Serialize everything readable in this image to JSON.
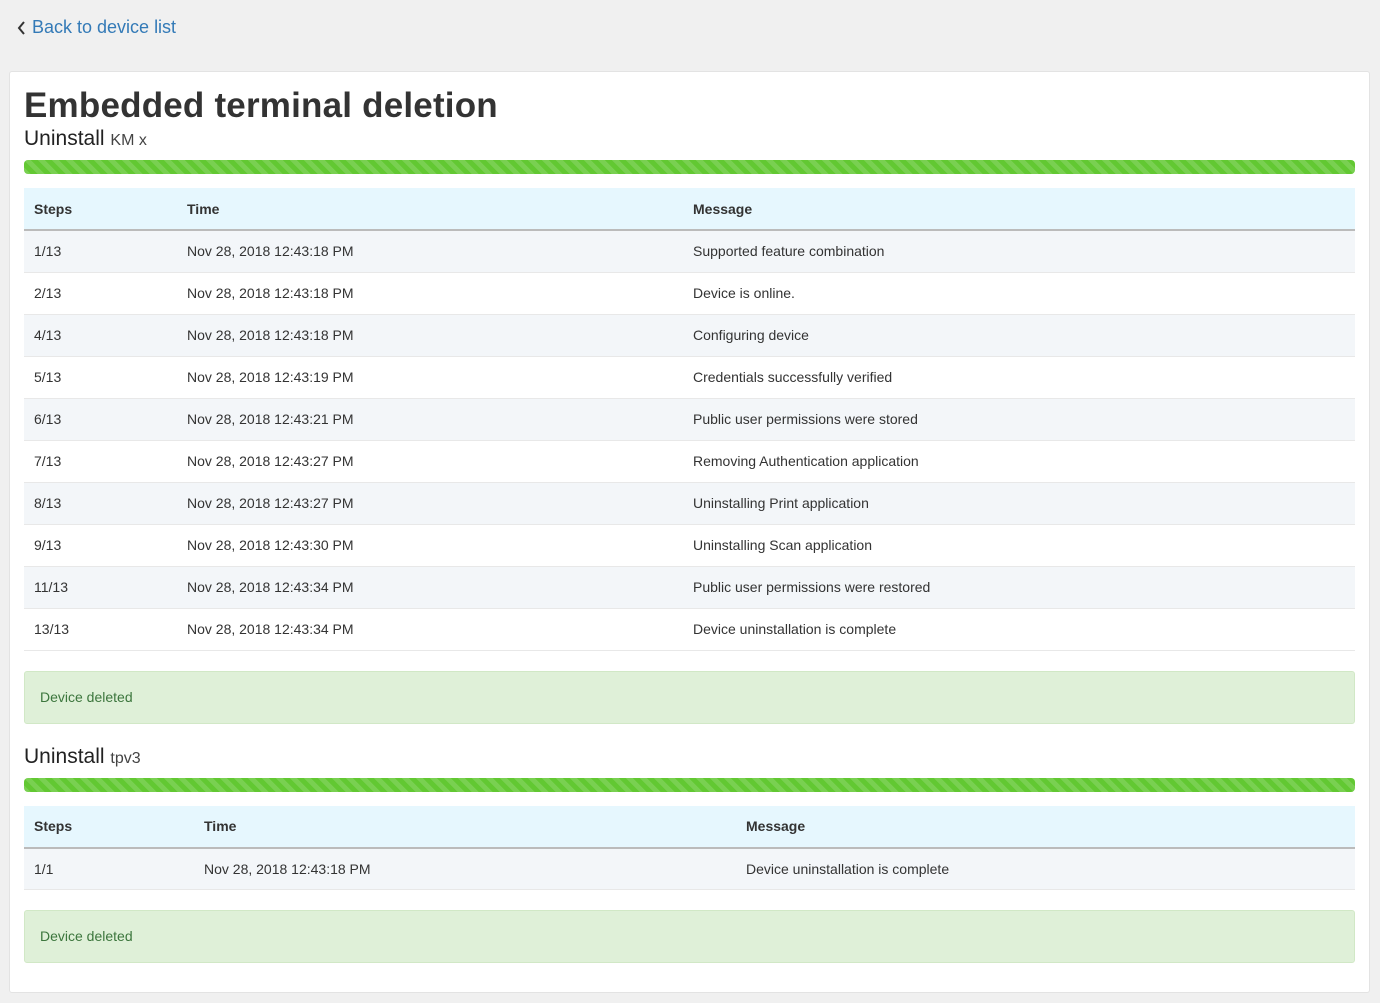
{
  "nav": {
    "back_label": "Back to device list"
  },
  "page": {
    "title": "Embedded terminal deletion"
  },
  "headers": {
    "steps": "Steps",
    "time": "Time",
    "message": "Message"
  },
  "colors": {
    "progress": "#62c832",
    "alert_bg": "#dff0d8",
    "link": "#337ab7"
  },
  "sections": [
    {
      "label": "Uninstall",
      "device": "KM x",
      "progress": 100,
      "alert": "Device deleted",
      "rows": [
        {
          "step": "1/13",
          "time": "Nov 28, 2018 12:43:18 PM",
          "message": "Supported feature combination"
        },
        {
          "step": "2/13",
          "time": "Nov 28, 2018 12:43:18 PM",
          "message": "Device is online."
        },
        {
          "step": "4/13",
          "time": "Nov 28, 2018 12:43:18 PM",
          "message": "Configuring device"
        },
        {
          "step": "5/13",
          "time": "Nov 28, 2018 12:43:19 PM",
          "message": "Credentials successfully verified"
        },
        {
          "step": "6/13",
          "time": "Nov 28, 2018 12:43:21 PM",
          "message": "Public user permissions were stored"
        },
        {
          "step": "7/13",
          "time": "Nov 28, 2018 12:43:27 PM",
          "message": "Removing Authentication application"
        },
        {
          "step": "8/13",
          "time": "Nov 28, 2018 12:43:27 PM",
          "message": "Uninstalling Print application"
        },
        {
          "step": "9/13",
          "time": "Nov 28, 2018 12:43:30 PM",
          "message": "Uninstalling Scan application"
        },
        {
          "step": "11/13",
          "time": "Nov 28, 2018 12:43:34 PM",
          "message": "Public user permissions were restored"
        },
        {
          "step": "13/13",
          "time": "Nov 28, 2018 12:43:34 PM",
          "message": "Device uninstallation is complete"
        }
      ]
    },
    {
      "label": "Uninstall",
      "device": "tpv3",
      "progress": 100,
      "alert": "Device deleted",
      "rows": [
        {
          "step": "1/1",
          "time": "Nov 28, 2018 12:43:18 PM",
          "message": "Device uninstallation is complete"
        }
      ]
    }
  ]
}
